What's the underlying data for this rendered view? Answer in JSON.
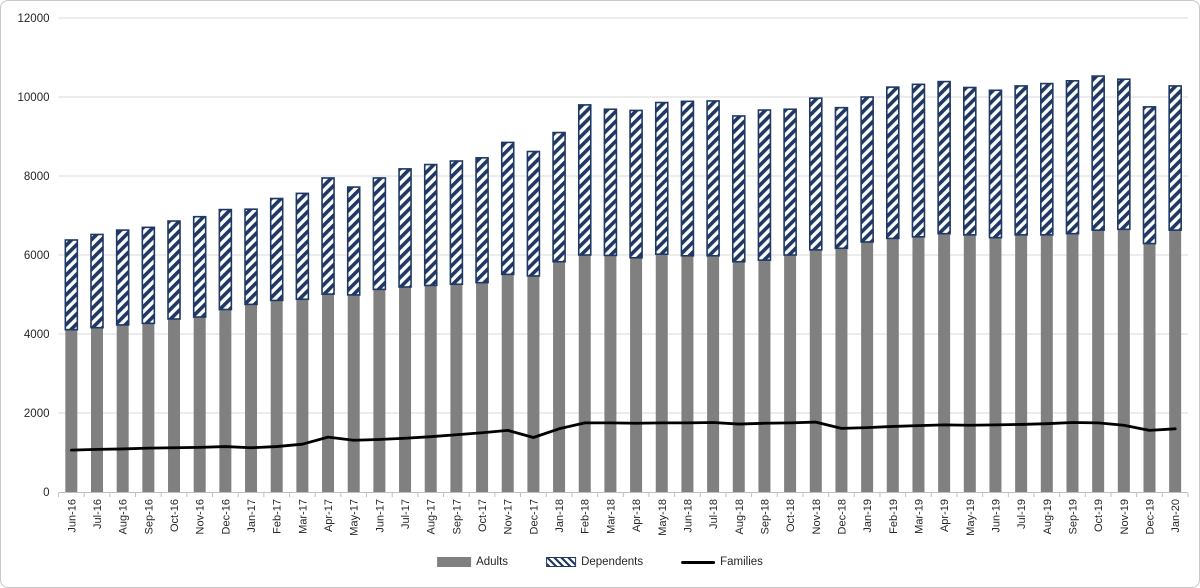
{
  "colors": {
    "adults": "#808080",
    "dependents": "#1F3864",
    "families": "#000000",
    "gridline": "#D9D9D9",
    "axis": "#BFBFBF",
    "text": "#262626",
    "background": "#FFFFFF",
    "border": "#C9C9C9"
  },
  "legend": {
    "position": "bottom"
  },
  "chart_data": {
    "type": "bar",
    "subtype": "stacked-columns-with-line",
    "title": "",
    "xlabel": "",
    "ylabel": "",
    "ylim": [
      0,
      12000
    ],
    "yticks": [
      0,
      2000,
      4000,
      6000,
      8000,
      10000,
      12000
    ],
    "grid": true,
    "legend_position": "bottom",
    "categories": [
      "Jun-16",
      "Jul-16",
      "Aug-16",
      "Sep-16",
      "Oct-16",
      "Nov-16",
      "Dec-16",
      "Jan-17",
      "Feb-17",
      "Mar-17",
      "Apr-17",
      "May-17",
      "Jun-17",
      "Jul-17",
      "Aug-17",
      "Sep-17",
      "Oct-17",
      "Nov-17",
      "Dec-17",
      "Jan-18",
      "Feb-18",
      "Mar-18",
      "Apr-18",
      "May-18",
      "Jun-18",
      "Jul-18",
      "Aug-18",
      "Sep-18",
      "Oct-18",
      "Nov-18",
      "Dec-18",
      "Jan-19",
      "Feb-19",
      "Mar-19",
      "Apr-19",
      "May-19",
      "Jun-19",
      "Jul-19",
      "Aug-19",
      "Sep-19",
      "Oct-19",
      "Nov-19",
      "Dec-19",
      "Jan-20"
    ],
    "series": [
      {
        "name": "Adults",
        "type": "bar",
        "stack": "total",
        "color": "#808080",
        "values": [
          4110,
          4160,
          4230,
          4270,
          4380,
          4430,
          4620,
          4750,
          4850,
          4880,
          5010,
          4990,
          5130,
          5190,
          5230,
          5260,
          5300,
          5510,
          5470,
          5830,
          6000,
          5990,
          5930,
          6020,
          5980,
          5980,
          5830,
          5870,
          6000,
          6130,
          6170,
          6330,
          6420,
          6460,
          6540,
          6510,
          6440,
          6510,
          6510,
          6540,
          6630,
          6650,
          6290,
          6630
        ]
      },
      {
        "name": "Dependents",
        "type": "bar",
        "stack": "total",
        "fill_pattern": "diagonal-hatch",
        "color": "#1F3864",
        "values": [
          2270,
          2360,
          2400,
          2430,
          2480,
          2540,
          2530,
          2410,
          2580,
          2680,
          2940,
          2730,
          2820,
          2990,
          3060,
          3120,
          3160,
          3340,
          3150,
          3270,
          3800,
          3700,
          3730,
          3840,
          3910,
          3920,
          3690,
          3800,
          3690,
          3840,
          3560,
          3670,
          3830,
          3860,
          3850,
          3730,
          3730,
          3770,
          3830,
          3870,
          3900,
          3800,
          3460,
          3650
        ]
      },
      {
        "name": "Families",
        "type": "line",
        "color": "#000000",
        "values": [
          1060,
          1080,
          1090,
          1110,
          1120,
          1130,
          1150,
          1120,
          1150,
          1210,
          1390,
          1310,
          1330,
          1360,
          1400,
          1450,
          1500,
          1560,
          1380,
          1600,
          1750,
          1750,
          1740,
          1750,
          1750,
          1760,
          1720,
          1740,
          1750,
          1770,
          1610,
          1630,
          1660,
          1680,
          1700,
          1690,
          1700,
          1710,
          1730,
          1760,
          1750,
          1690,
          1560,
          1600
        ]
      }
    ]
  }
}
